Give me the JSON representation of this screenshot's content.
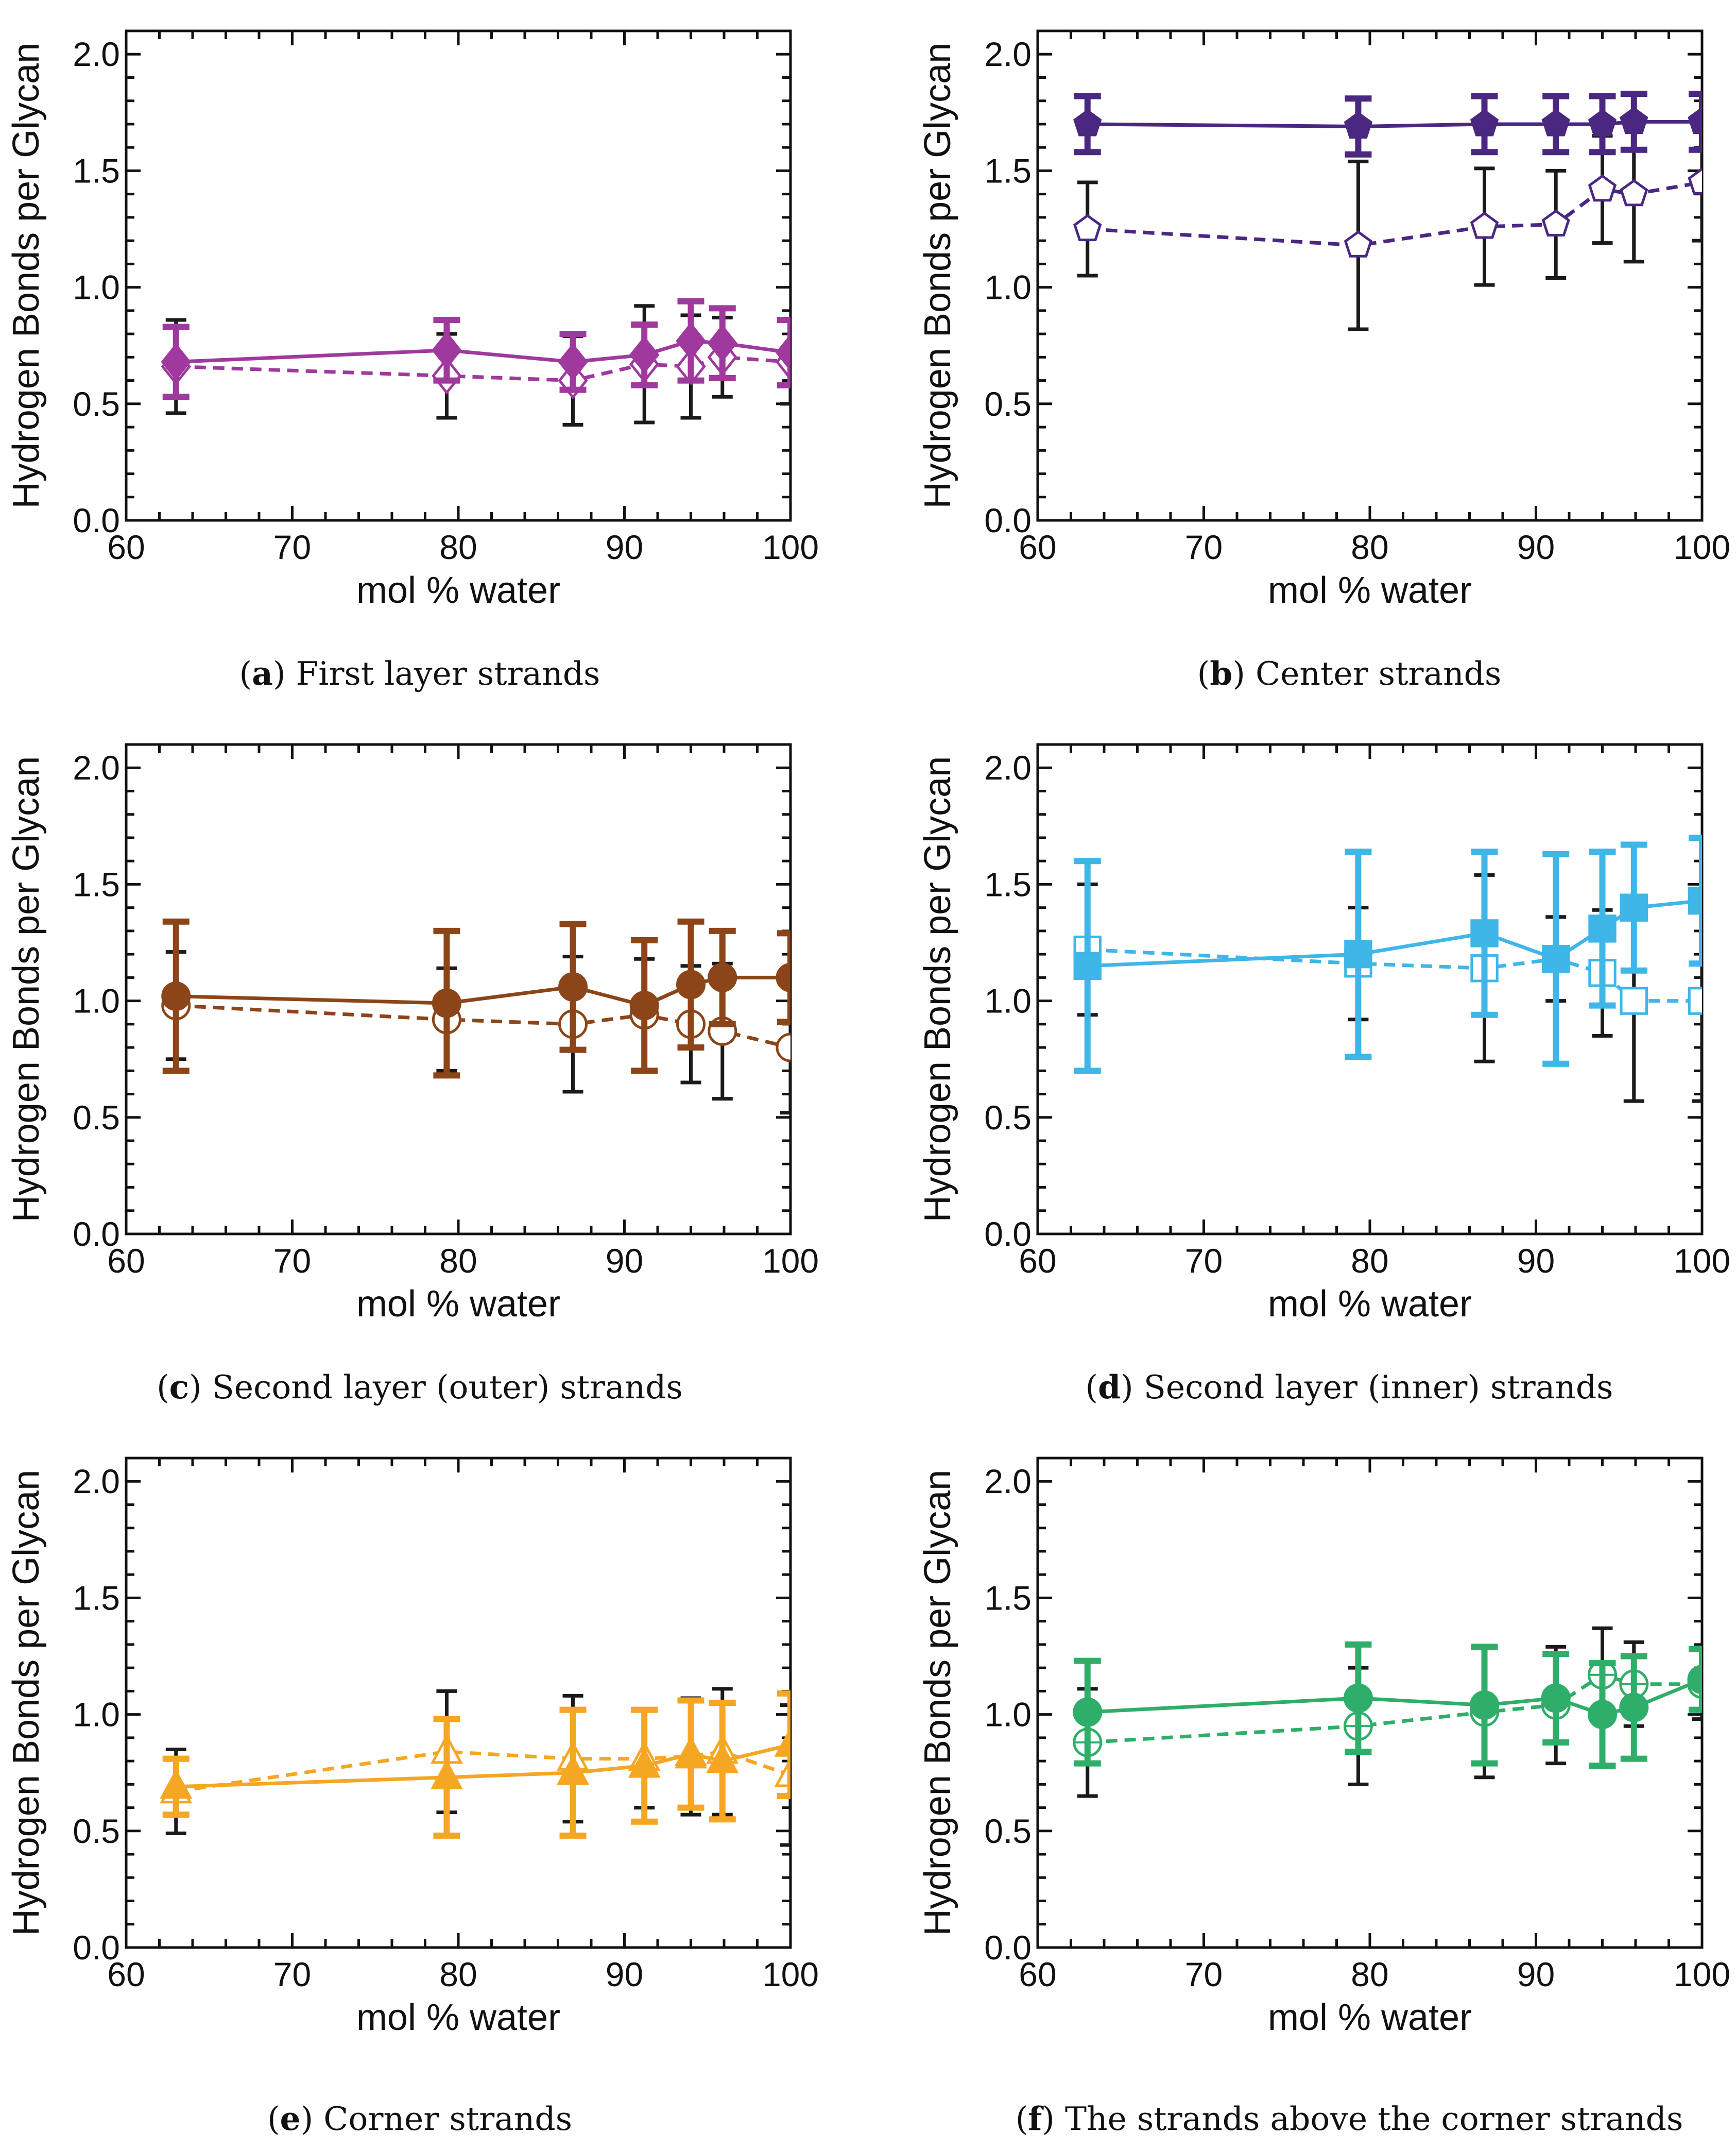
{
  "figure": {
    "panels": [
      {
        "letter": "a",
        "caption_text": "First layer strands",
        "color": "#a0399e",
        "marker": "diamond"
      },
      {
        "letter": "b",
        "caption_text": "Center strands",
        "color": "#4a2882",
        "marker": "pentagon"
      },
      {
        "letter": "c",
        "caption_text": "Second layer (outer) strands",
        "color": "#8c4519",
        "marker": "circle"
      },
      {
        "letter": "d",
        "caption_text": "Second layer (inner) strands",
        "color": "#3fb6e8",
        "marker": "square"
      },
      {
        "letter": "e",
        "caption_text": "Corner strands",
        "color": "#f5a623",
        "marker": "triangle"
      },
      {
        "letter": "f",
        "caption_text": "The strands above the corner strands",
        "color": "#2fae6a",
        "marker": "circle-plus"
      }
    ],
    "error_bar_color_open": "#1a1a1a"
  },
  "chart_data": [
    {
      "type": "line",
      "panel": "a",
      "xlabel": "mol % water",
      "ylabel": "Hydrogen Bonds per Glycan",
      "xlim": [
        60,
        100
      ],
      "ylim": [
        0.0,
        2.1
      ],
      "xticks": [
        "60",
        "70",
        "80",
        "90",
        "100"
      ],
      "yticks": [
        "0.0",
        "0.5",
        "1.0",
        "1.5",
        "2.0"
      ],
      "x": [
        63,
        79.3,
        86.9,
        91.2,
        94,
        95.9,
        100
      ],
      "series": [
        {
          "name": "filled",
          "style": "solid",
          "values": [
            0.68,
            0.73,
            0.68,
            0.71,
            0.77,
            0.76,
            0.72
          ],
          "err": [
            0.15,
            0.13,
            0.12,
            0.13,
            0.17,
            0.15,
            0.14
          ]
        },
        {
          "name": "open",
          "style": "dashed",
          "values": [
            0.66,
            0.62,
            0.6,
            0.67,
            0.66,
            0.7,
            0.68
          ],
          "err": [
            0.2,
            0.18,
            0.19,
            0.25,
            0.22,
            0.17,
            0.18
          ]
        }
      ]
    },
    {
      "type": "line",
      "panel": "b",
      "xlabel": "mol % water",
      "ylabel": "Hydrogen Bonds per Glycan",
      "xlim": [
        60,
        100
      ],
      "ylim": [
        0.0,
        2.1
      ],
      "xticks": [
        "60",
        "70",
        "80",
        "90",
        "100"
      ],
      "yticks": [
        "0.0",
        "0.5",
        "1.0",
        "1.5",
        "2.0"
      ],
      "x": [
        63,
        79.3,
        86.9,
        91.2,
        94,
        95.9,
        100
      ],
      "series": [
        {
          "name": "filled",
          "style": "solid",
          "values": [
            1.7,
            1.69,
            1.7,
            1.7,
            1.7,
            1.71,
            1.71
          ],
          "err": [
            0.12,
            0.12,
            0.12,
            0.12,
            0.12,
            0.12,
            0.12
          ]
        },
        {
          "name": "open",
          "style": "dashed",
          "values": [
            1.25,
            1.18,
            1.26,
            1.27,
            1.42,
            1.4,
            1.45
          ],
          "err": [
            0.2,
            0.36,
            0.25,
            0.23,
            0.23,
            0.29,
            0.25
          ]
        }
      ]
    },
    {
      "type": "line",
      "panel": "c",
      "xlabel": "mol % water",
      "ylabel": "Hydrogen Bonds per Glycan",
      "xlim": [
        60,
        100
      ],
      "ylim": [
        0.0,
        2.1
      ],
      "xticks": [
        "60",
        "70",
        "80",
        "90",
        "100"
      ],
      "yticks": [
        "0.0",
        "0.5",
        "1.0",
        "1.5",
        "2.0"
      ],
      "x": [
        63,
        79.3,
        86.9,
        91.2,
        94,
        95.9,
        100
      ],
      "series": [
        {
          "name": "filled",
          "style": "solid",
          "values": [
            1.02,
            0.99,
            1.06,
            0.98,
            1.07,
            1.1,
            1.1
          ],
          "err": [
            0.32,
            0.31,
            0.27,
            0.28,
            0.27,
            0.2,
            0.19
          ]
        },
        {
          "name": "open",
          "style": "dashed",
          "values": [
            0.98,
            0.92,
            0.9,
            0.94,
            0.9,
            0.87,
            0.8
          ],
          "err": [
            0.23,
            0.22,
            0.29,
            0.24,
            0.25,
            0.29,
            0.28
          ]
        }
      ]
    },
    {
      "type": "line",
      "panel": "d",
      "xlabel": "mol % water",
      "ylabel": "Hydrogen Bonds per Glycan",
      "xlim": [
        60,
        100
      ],
      "ylim": [
        0.0,
        2.1
      ],
      "xticks": [
        "60",
        "70",
        "80",
        "90",
        "100"
      ],
      "yticks": [
        "0.0",
        "0.5",
        "1.0",
        "1.5",
        "2.0"
      ],
      "x": [
        63,
        79.3,
        86.9,
        91.2,
        94,
        95.9,
        100
      ],
      "series": [
        {
          "name": "filled",
          "style": "solid",
          "values": [
            1.15,
            1.2,
            1.29,
            1.18,
            1.31,
            1.4,
            1.43
          ],
          "err": [
            0.45,
            0.44,
            0.35,
            0.45,
            0.33,
            0.27,
            0.27
          ]
        },
        {
          "name": "open",
          "style": "dashed",
          "values": [
            1.22,
            1.16,
            1.14,
            1.18,
            1.12,
            1.0,
            1.0
          ],
          "err": [
            0.28,
            0.24,
            0.4,
            0.18,
            0.27,
            0.43,
            0.43
          ]
        }
      ]
    },
    {
      "type": "line",
      "panel": "e",
      "xlabel": "mol % water",
      "ylabel": "Hydrogen Bonds per Glycan",
      "xlim": [
        60,
        100
      ],
      "ylim": [
        0.0,
        2.1
      ],
      "xticks": [
        "60",
        "70",
        "80",
        "90",
        "100"
      ],
      "yticks": [
        "0.0",
        "0.5",
        "1.0",
        "1.5",
        "2.0"
      ],
      "x": [
        63,
        79.3,
        86.9,
        91.2,
        94,
        95.9,
        100
      ],
      "series": [
        {
          "name": "filled",
          "style": "solid",
          "values": [
            0.69,
            0.73,
            0.75,
            0.78,
            0.83,
            0.8,
            0.87
          ],
          "err": [
            0.12,
            0.25,
            0.27,
            0.24,
            0.23,
            0.25,
            0.22
          ]
        },
        {
          "name": "open",
          "style": "dashed",
          "values": [
            0.67,
            0.84,
            0.81,
            0.81,
            0.82,
            0.84,
            0.74
          ],
          "err": [
            0.18,
            0.26,
            0.27,
            0.21,
            0.25,
            0.27,
            0.3
          ]
        }
      ]
    },
    {
      "type": "line",
      "panel": "f",
      "xlabel": "mol % water",
      "ylabel": "Hydrogen Bonds per Glycan",
      "xlim": [
        60,
        100
      ],
      "ylim": [
        0.0,
        2.1
      ],
      "xticks": [
        "60",
        "70",
        "80",
        "90",
        "100"
      ],
      "yticks": [
        "0.0",
        "0.5",
        "1.0",
        "1.5",
        "2.0"
      ],
      "x": [
        63,
        79.3,
        86.9,
        91.2,
        94,
        95.9,
        100
      ],
      "series": [
        {
          "name": "filled",
          "style": "solid",
          "values": [
            1.01,
            1.07,
            1.04,
            1.07,
            1.0,
            1.03,
            1.15
          ],
          "err": [
            0.22,
            0.23,
            0.25,
            0.19,
            0.22,
            0.22,
            0.13
          ]
        },
        {
          "name": "open",
          "style": "dashed",
          "values": [
            0.88,
            0.95,
            1.01,
            1.04,
            1.17,
            1.13,
            1.13
          ],
          "err": [
            0.23,
            0.25,
            0.28,
            0.25,
            0.2,
            0.18,
            0.15
          ]
        }
      ]
    }
  ]
}
